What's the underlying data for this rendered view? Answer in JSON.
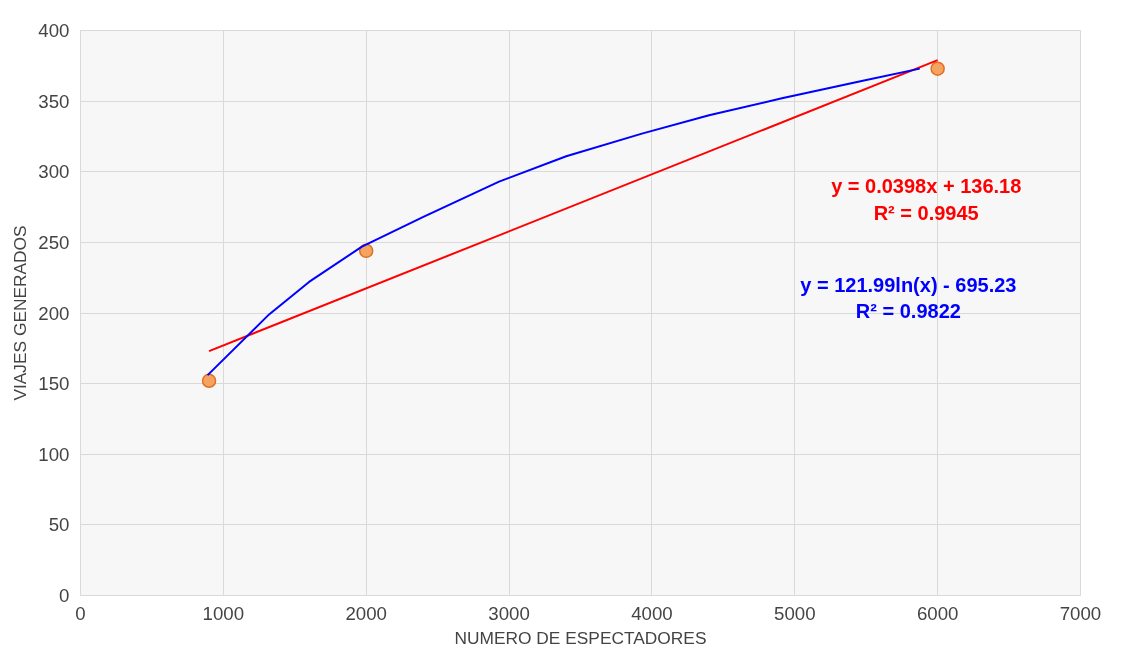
{
  "chart_data": {
    "type": "scatter",
    "xlabel": "NUMERO DE ESPECTADORES",
    "ylabel": "VIAJES GENERADOS",
    "xlim": [
      0,
      7000
    ],
    "xticks": [
      0,
      1000,
      2000,
      3000,
      4000,
      5000,
      6000,
      7000
    ],
    "ylim": [
      0,
      400
    ],
    "yticks": [
      0,
      50,
      100,
      150,
      200,
      250,
      300,
      350,
      400
    ],
    "grid": true,
    "marker": "circle",
    "series": [
      {
        "color": "#f4a460",
        "x": [
          900,
          2000,
          6000
        ],
        "values": [
          152,
          244,
          373
        ]
      },
      {
        "type": "line",
        "marker": "none",
        "name": "y = 0.0398x + 136.18\nR² = 0.9945",
        "color": "#ff0000",
        "x": [
          900,
          6000
        ],
        "values": [
          173,
          379
        ]
      },
      {
        "type": "line",
        "marker": "none",
        "name": "y = 121.99ln(x) - 695.23\nR² = 0.9822",
        "color": "#0000ff",
        "x": [
          890,
          1320,
          1600,
          1970,
          2400,
          2930,
          3400,
          3930,
          4400,
          4910,
          5460,
          5875
        ],
        "values": [
          156,
          199,
          222,
          247,
          268,
          293,
          311,
          327,
          340,
          352,
          364,
          373
        ]
      }
    ]
  }
}
